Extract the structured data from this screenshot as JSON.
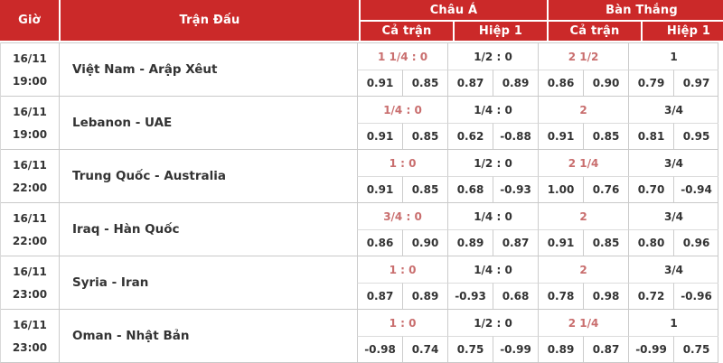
{
  "colors": {
    "header_bg": "#cb2929",
    "header_text": "#ffffff",
    "handicap_full_red": "#c96e6e",
    "body_text": "#333333",
    "border": "#cccccc"
  },
  "table": {
    "headers": {
      "time": "Giờ",
      "match": "Trận Đấu",
      "asian": "Châu Á",
      "goals": "Bàn Thắng",
      "sub_full": "Cả trận",
      "sub_half": "Hiệp 1"
    },
    "matches": [
      {
        "date": "16/11",
        "time": "19:00",
        "teams": "Việt Nam - Arập Xêut",
        "asian_full": {
          "handicap": "1 1/4 : 0",
          "odds": [
            "0.91",
            "0.85"
          ]
        },
        "asian_half": {
          "handicap": "1/2 : 0",
          "odds": [
            "0.87",
            "0.89"
          ]
        },
        "goals_full": {
          "handicap": "2 1/2",
          "odds": [
            "0.86",
            "0.90"
          ]
        },
        "goals_half": {
          "handicap": "1",
          "odds": [
            "0.79",
            "0.97"
          ]
        }
      },
      {
        "date": "16/11",
        "time": "19:00",
        "teams": "Lebanon - UAE",
        "asian_full": {
          "handicap": "1/4 : 0",
          "odds": [
            "0.91",
            "0.85"
          ]
        },
        "asian_half": {
          "handicap": "1/4 : 0",
          "odds": [
            "0.62",
            "-0.88"
          ]
        },
        "goals_full": {
          "handicap": "2",
          "odds": [
            "0.91",
            "0.85"
          ]
        },
        "goals_half": {
          "handicap": "3/4",
          "odds": [
            "0.81",
            "0.95"
          ]
        }
      },
      {
        "date": "16/11",
        "time": "22:00",
        "teams": "Trung Quốc - Australia",
        "asian_full": {
          "handicap": "1 : 0",
          "odds": [
            "0.91",
            "0.85"
          ]
        },
        "asian_half": {
          "handicap": "1/2 : 0",
          "odds": [
            "0.68",
            "-0.93"
          ]
        },
        "goals_full": {
          "handicap": "2 1/4",
          "odds": [
            "1.00",
            "0.76"
          ]
        },
        "goals_half": {
          "handicap": "3/4",
          "odds": [
            "0.70",
            "-0.94"
          ]
        }
      },
      {
        "date": "16/11",
        "time": "22:00",
        "teams": "Iraq - Hàn Quốc",
        "asian_full": {
          "handicap": "3/4 : 0",
          "odds": [
            "0.86",
            "0.90"
          ]
        },
        "asian_half": {
          "handicap": "1/4 : 0",
          "odds": [
            "0.89",
            "0.87"
          ]
        },
        "goals_full": {
          "handicap": "2",
          "odds": [
            "0.91",
            "0.85"
          ]
        },
        "goals_half": {
          "handicap": "3/4",
          "odds": [
            "0.80",
            "0.96"
          ]
        }
      },
      {
        "date": "16/11",
        "time": "23:00",
        "teams": "Syria - Iran",
        "asian_full": {
          "handicap": "1 : 0",
          "odds": [
            "0.87",
            "0.89"
          ]
        },
        "asian_half": {
          "handicap": "1/4 : 0",
          "odds": [
            "-0.93",
            "0.68"
          ]
        },
        "goals_full": {
          "handicap": "2",
          "odds": [
            "0.78",
            "0.98"
          ]
        },
        "goals_half": {
          "handicap": "3/4",
          "odds": [
            "0.72",
            "-0.96"
          ]
        }
      },
      {
        "date": "16/11",
        "time": "23:00",
        "teams": "Oman - Nhật Bản",
        "asian_full": {
          "handicap": "1 : 0",
          "odds": [
            "-0.98",
            "0.74"
          ]
        },
        "asian_half": {
          "handicap": "1/2 : 0",
          "odds": [
            "0.75",
            "-0.99"
          ]
        },
        "goals_full": {
          "handicap": "2 1/4",
          "odds": [
            "0.89",
            "0.87"
          ]
        },
        "goals_half": {
          "handicap": "1",
          "odds": [
            "-0.99",
            "0.75"
          ]
        }
      }
    ]
  }
}
